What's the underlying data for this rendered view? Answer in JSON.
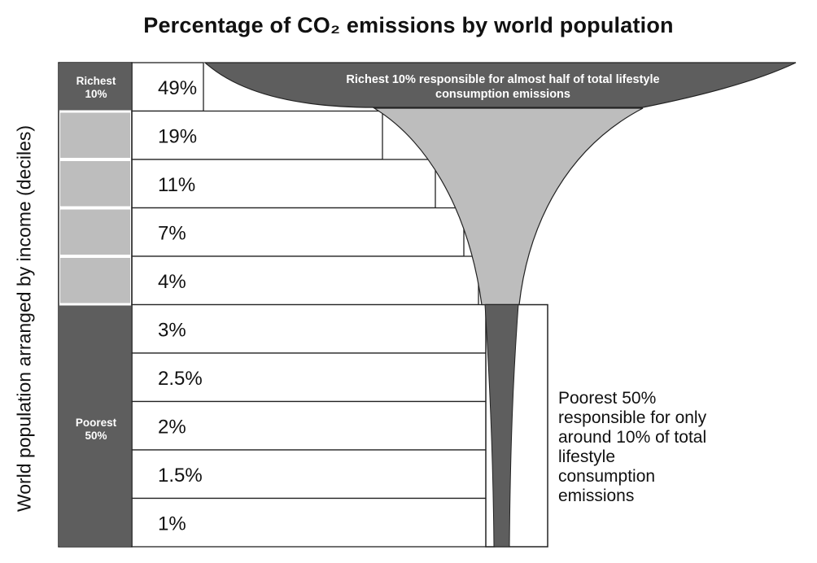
{
  "title": "Percentage of CO₂ emissions by world population",
  "colors": {
    "dark": "#5e5e5e",
    "light": "#bdbdbd",
    "border": "#222222"
  },
  "chart_data": {
    "type": "bar",
    "title": "Percentage of CO₂ emissions by world population",
    "ylabel": "World population arranged by income (deciles)",
    "xlabel": "",
    "categories": [
      "Richest 10%",
      "",
      "",
      "",
      "",
      "",
      "",
      "",
      "",
      ""
    ],
    "series": [
      {
        "values": [
          49,
          19,
          11,
          7,
          4,
          3,
          2.5,
          2,
          1.5,
          1
        ]
      }
    ],
    "value_labels": [
      "49%",
      "19%",
      "11%",
      "7%",
      "4%",
      "3%",
      "2.5%",
      "2%",
      "1.5%",
      "1%"
    ],
    "groups": [
      {
        "label": "Richest\n10%",
        "deciles": [
          1
        ],
        "color": "dark"
      },
      {
        "label": "",
        "deciles": [
          2,
          3,
          4,
          5
        ],
        "color": "light"
      },
      {
        "label": "Poorest\n50%",
        "deciles": [
          6,
          7,
          8,
          9,
          10
        ],
        "color": "dark"
      }
    ],
    "annotations": [
      "Richest 10% responsible for almost half of total lifestyle consumption emissions",
      "Poorest 50% responsible for only around 10% of total lifestyle consumption emissions"
    ],
    "grid": false,
    "legend": "none"
  },
  "group_labels": {
    "richest_line1": "Richest",
    "richest_line2": "10%",
    "poorest_line1": "Poorest",
    "poorest_line2": "50%"
  },
  "annotation_rich": {
    "line1": "Richest 10% responsible for almost half of total lifestyle",
    "line2": "consumption emissions"
  },
  "annotation_poor": "Poorest 50% responsible for only around 10% of total lifestyle consumption emissions"
}
